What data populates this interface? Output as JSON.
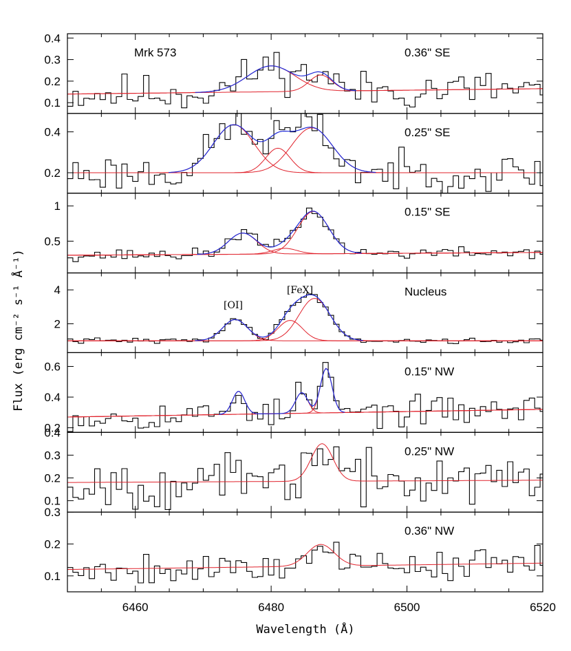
{
  "chart_data": {
    "type": "line",
    "title": "",
    "object_label": "Mrk 573",
    "xlabel": "Wavelength (Å)",
    "ylabel": "Flux (erg cm⁻² s⁻¹ Å⁻¹)",
    "xlim": [
      6450,
      6520
    ],
    "xticks": [
      6460,
      6480,
      6500,
      6520
    ],
    "xticklabels": [
      "6460",
      "6480",
      "6500",
      "6520"
    ],
    "line_labels": [
      "[OI]",
      "[FeX]"
    ],
    "colors": {
      "observed": "#000000",
      "components": "#e0202a",
      "total_fit": "#1f2ad8"
    },
    "panels": [
      {
        "label": "0.36\" SE",
        "ylim": [
          0.05,
          0.42
        ],
        "yticks": [
          0.1,
          0.2,
          0.3,
          0.4
        ],
        "yticklabels": [
          "0.1",
          "0.2",
          "0.3",
          "0.4"
        ],
        "continuum": {
          "x1": 6450,
          "y1": 0.14,
          "x2": 6520,
          "y2": 0.165
        },
        "components": [
          {
            "center": 6480,
            "amp": 0.12,
            "sigma": 3.5
          },
          {
            "center": 6487.3,
            "amp": 0.075,
            "sigma": 1.7
          }
        ],
        "noise": 0.045,
        "seed": 11
      },
      {
        "label": "0.25\" SE",
        "ylim": [
          0.1,
          0.49
        ],
        "yticks": [
          0.2,
          0.4
        ],
        "yticklabels": [
          "0.2",
          "0.4"
        ],
        "continuum": {
          "x1": 6450,
          "y1": 0.2,
          "x2": 6520,
          "y2": 0.2
        },
        "components": [
          {
            "center": 6474.5,
            "amp": 0.235,
            "sigma": 3.0
          },
          {
            "center": 6481,
            "amp": 0.12,
            "sigma": 1.8
          },
          {
            "center": 6486,
            "amp": 0.22,
            "sigma": 3.0
          }
        ],
        "noise": 0.045,
        "seed": 23
      },
      {
        "label": "0.15\" SE",
        "ylim": [
          0.05,
          1.18
        ],
        "yticks": [
          0.5,
          1
        ],
        "yticklabels": [
          "0.5",
          "1"
        ],
        "continuum": {
          "x1": 6450,
          "y1": 0.3,
          "x2": 6520,
          "y2": 0.34
        },
        "components": [
          {
            "center": 6475.8,
            "amp": 0.3,
            "sigma": 2.1
          },
          {
            "center": 6482,
            "amp": 0.08,
            "sigma": 1.8
          },
          {
            "center": 6486.2,
            "amp": 0.6,
            "sigma": 2.3
          }
        ],
        "noise": 0.04,
        "seed": 37
      },
      {
        "label": "Nucleus",
        "ylim": [
          0.3,
          5.0
        ],
        "yticks": [
          2,
          4
        ],
        "yticklabels": [
          "2",
          "4"
        ],
        "continuum": {
          "x1": 6450,
          "y1": 1.0,
          "x2": 6520,
          "y2": 1.0
        },
        "components": [
          {
            "center": 6474.7,
            "amp": 1.25,
            "sigma": 1.85
          },
          {
            "center": 6482.8,
            "amp": 1.2,
            "sigma": 1.8
          },
          {
            "center": 6486.4,
            "amp": 2.5,
            "sigma": 2.3
          }
        ],
        "noise": 0.08,
        "seed": 41
      },
      {
        "label": "0.15\" NW",
        "ylim": [
          0.17,
          0.69
        ],
        "yticks": [
          0.2,
          0.4,
          0.6
        ],
        "yticklabels": [
          "0.2",
          "0.4",
          "0.6"
        ],
        "continuum": {
          "x1": 6450,
          "y1": 0.27,
          "x2": 6520,
          "y2": 0.32
        },
        "components": [
          {
            "center": 6475.2,
            "amp": 0.15,
            "sigma": 0.9
          },
          {
            "center": 6484.5,
            "amp": 0.135,
            "sigma": 0.9
          },
          {
            "center": 6488.1,
            "amp": 0.29,
            "sigma": 0.85
          }
        ],
        "noise": 0.045,
        "seed": 53
      },
      {
        "label": "0.25\" NW",
        "ylim": [
          0.05,
          0.4
        ],
        "yticks": [
          0.1,
          0.2,
          0.3,
          0.4
        ],
        "yticklabels": [
          "0.1",
          "0.2",
          "0.3",
          "0.4"
        ],
        "continuum": {
          "x1": 6450,
          "y1": 0.18,
          "x2": 6520,
          "y2": 0.19
        },
        "components": [
          {
            "center": 6487.5,
            "amp": 0.165,
            "sigma": 1.6
          }
        ],
        "noise": 0.055,
        "seed": 67
      },
      {
        "label": "0.36\" NW",
        "ylim": [
          0.05,
          0.3
        ],
        "yticks": [
          0.1,
          0.2,
          0.3
        ],
        "yticklabels": [
          "0.1",
          "0.2",
          "0.3"
        ],
        "continuum": {
          "x1": 6450,
          "y1": 0.12,
          "x2": 6520,
          "y2": 0.14
        },
        "components": [
          {
            "center": 6487.3,
            "amp": 0.068,
            "sigma": 2.0
          }
        ],
        "noise": 0.025,
        "seed": 79
      }
    ]
  }
}
